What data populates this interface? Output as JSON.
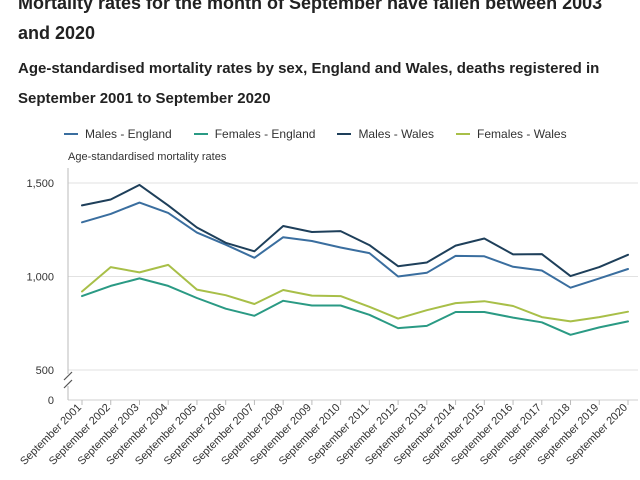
{
  "page": {
    "title": "Mortality rates for the month of September have fallen between 2003 and 2020",
    "subtitle": "Age-standardised mortality rates by sex, England and Wales, deaths registered in September 2001 to September 2020"
  },
  "chart_data": {
    "type": "line",
    "title": "Mortality rates for the month of September have fallen between 2003 and 2020",
    "subtitle": "Age-standardised mortality rates by sex, England and Wales, deaths registered in September 2001 to September 2020",
    "ylabel": "Age-standardised mortality rates",
    "xlabel": "",
    "y_break": true,
    "ylim": [
      500,
      1500
    ],
    "y_ticks": [
      {
        "value": 0,
        "label": "0"
      },
      {
        "value": 500,
        "label": "500"
      },
      {
        "value": 1000,
        "label": "1,000"
      },
      {
        "value": 1500,
        "label": "1,500"
      }
    ],
    "grid": true,
    "legend_position": "top",
    "categories": [
      "September 2001",
      "September 2002",
      "September 2003",
      "September 2004",
      "September 2005",
      "September 2006",
      "September 2007",
      "September 2008",
      "September 2009",
      "September 2010",
      "September 2011",
      "September 2012",
      "September 2013",
      "September 2014",
      "September 2015",
      "September 2016",
      "September 2017",
      "September 2018",
      "September 2019",
      "September 2020"
    ],
    "series": [
      {
        "name": "Males - England",
        "color": "#3a6e9f",
        "values": [
          1290,
          1335,
          1395,
          1340,
          1235,
          1170,
          1100,
          1210,
          1190,
          1155,
          1125,
          1000,
          1020,
          1110,
          1108,
          1052,
          1032,
          940,
          990,
          1040
        ]
      },
      {
        "name": "Females - England",
        "color": "#2a9a84",
        "values": [
          895,
          950,
          990,
          950,
          885,
          828,
          790,
          870,
          845,
          845,
          795,
          724,
          736,
          810,
          810,
          780,
          755,
          688,
          728,
          760
        ]
      },
      {
        "name": "Males - Wales",
        "color": "#1e3f5a",
        "values": [
          1380,
          1412,
          1490,
          1380,
          1262,
          1180,
          1135,
          1270,
          1238,
          1243,
          1168,
          1055,
          1075,
          1165,
          1203,
          1118,
          1120,
          1002,
          1050,
          1116
        ]
      },
      {
        "name": "Females - Wales",
        "color": "#a8bf48",
        "values": [
          920,
          1050,
          1022,
          1062,
          930,
          900,
          853,
          928,
          898,
          895,
          838,
          775,
          820,
          858,
          868,
          842,
          783,
          760,
          783,
          812
        ]
      }
    ]
  }
}
